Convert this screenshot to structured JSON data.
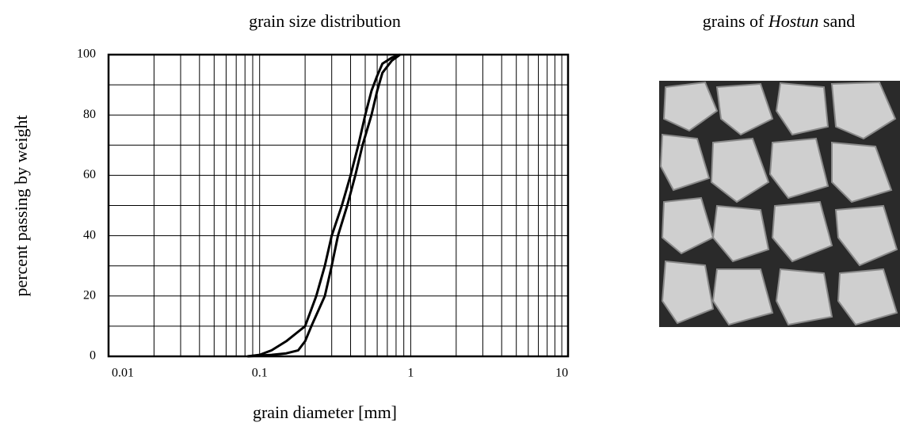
{
  "chart_data": {
    "type": "line",
    "title": "grain size distribution",
    "x_label": "grain diameter [mm]",
    "y_label": "percent passing by weight",
    "log_x": true,
    "grid": true,
    "xlim": [
      0.01,
      11
    ],
    "ylim": [
      0,
      100
    ],
    "xticks": [
      0.01,
      0.1,
      1,
      10
    ],
    "yticks": [
      0,
      20,
      40,
      60,
      80,
      100
    ],
    "xminor": [
      0.02,
      0.03,
      0.04,
      0.05,
      0.06,
      0.07,
      0.08,
      0.09,
      0.2,
      0.3,
      0.4,
      0.5,
      0.6,
      0.7,
      0.8,
      0.9,
      2,
      3,
      4,
      5,
      6,
      7,
      8,
      9
    ],
    "yminor": [
      10,
      30,
      50,
      70,
      90
    ],
    "series": [
      {
        "color": "#000000",
        "x": [
          0.083,
          0.1,
          0.12,
          0.15,
          0.2,
          0.237,
          0.27,
          0.3,
          0.35,
          0.4,
          0.45,
          0.5,
          0.55,
          0.6,
          0.65,
          0.75,
          0.85
        ],
        "values": [
          0,
          0.5,
          2,
          5,
          10,
          20,
          30,
          40,
          50,
          60,
          70,
          80,
          88,
          93,
          97,
          99,
          100
        ]
      },
      {
        "color": "#000000",
        "x": [
          0.083,
          0.12,
          0.15,
          0.18,
          0.2,
          0.22,
          0.27,
          0.3,
          0.33,
          0.38,
          0.43,
          0.48,
          0.55,
          0.6,
          0.65,
          0.75,
          0.85
        ],
        "values": [
          0,
          0.5,
          1,
          2,
          5,
          10,
          20,
          30,
          40,
          50,
          60,
          70,
          80,
          88,
          94,
          98,
          100
        ]
      }
    ]
  },
  "photo": {
    "title_start": "grains of ",
    "title_italic": "Hostun",
    "title_end": " sand"
  }
}
